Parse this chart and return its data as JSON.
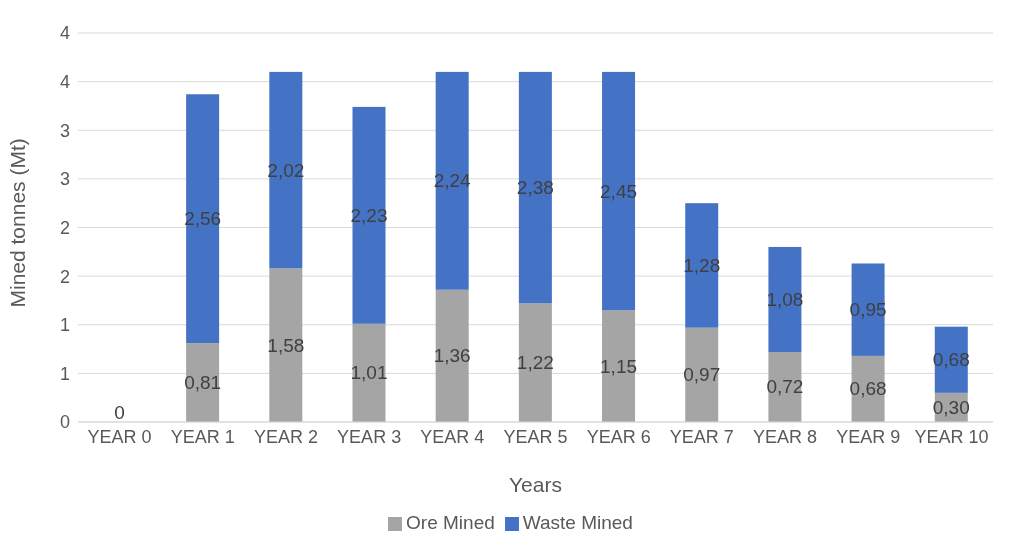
{
  "chart_data": {
    "type": "bar",
    "stacked": true,
    "xlabel": "Years",
    "ylabel": "Mined tonnes (Mt)",
    "categories": [
      "YEAR 0",
      "YEAR 1",
      "YEAR 2",
      "YEAR 3",
      "YEAR 4",
      "YEAR 5",
      "YEAR 6",
      "YEAR 7",
      "YEAR 8",
      "YEAR 9",
      "YEAR 10"
    ],
    "series": [
      {
        "name": "Ore Mined",
        "color": "#a5a5a5",
        "values": [
          0,
          0.81,
          1.58,
          1.01,
          1.36,
          1.22,
          1.15,
          0.97,
          0.72,
          0.68,
          0.3
        ],
        "value_labels": [
          "0",
          "0,81",
          "1,58",
          "1,01",
          "1,36",
          "1,22",
          "1,15",
          "0,97",
          "0,72",
          "0,68",
          "0,30"
        ]
      },
      {
        "name": "Waste Mined",
        "color": "#4472c4",
        "values": [
          0,
          2.56,
          2.02,
          2.23,
          2.24,
          2.38,
          2.45,
          1.28,
          1.08,
          0.95,
          0.68
        ],
        "value_labels": [
          null,
          "2,56",
          "2,02",
          "2,23",
          "2,24",
          "2,38",
          "2,45",
          "1,28",
          "1,08",
          "0,95",
          "0,68"
        ]
      }
    ],
    "ylim": [
      0,
      4
    ],
    "yticks": [
      0,
      {
        "value": 0.5,
        "label": "1"
      },
      1,
      {
        "value": 1.5,
        "label": "2"
      },
      2,
      {
        "value": 2.5,
        "label": "3"
      },
      3,
      {
        "value": 3.5,
        "label": "4"
      },
      4
    ],
    "grid": "y",
    "legend": "bottom"
  }
}
